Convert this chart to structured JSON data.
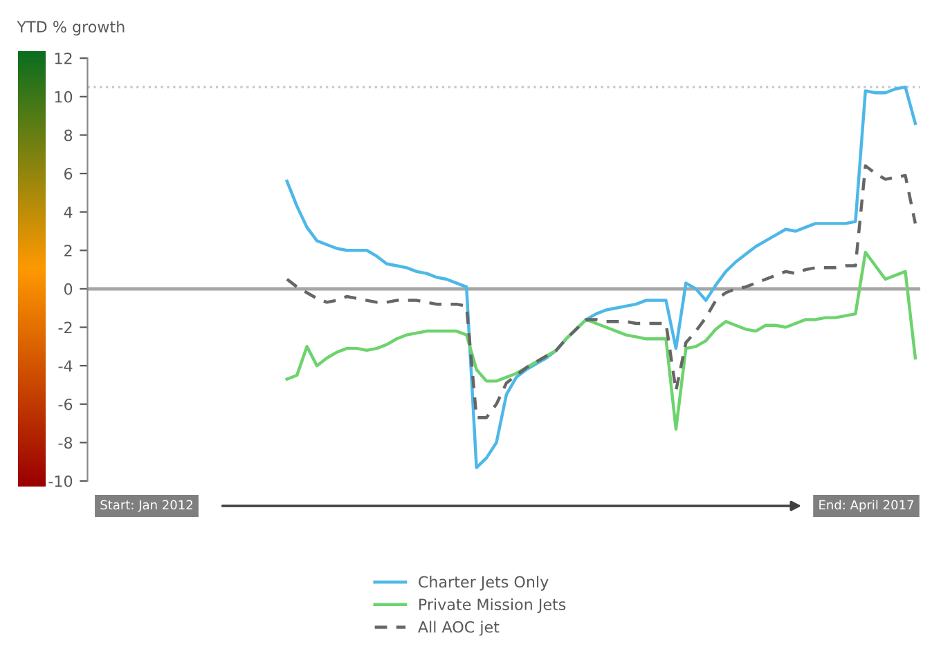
{
  "chart_data": {
    "type": "line",
    "ylabel": "YTD % growth",
    "categories": [
      null,
      null,
      null,
      null,
      null,
      null,
      null,
      null,
      null,
      null,
      null,
      null,
      null,
      null,
      null,
      null,
      null,
      null,
      null,
      null,
      null,
      null,
      null,
      null,
      null,
      null,
      null,
      null,
      null,
      null,
      null,
      null,
      null,
      null,
      null,
      null,
      null,
      null,
      null,
      null,
      null,
      null,
      null,
      null,
      null,
      null,
      null,
      null,
      null,
      null,
      null,
      null,
      null,
      null,
      null,
      null,
      null,
      null,
      null,
      null,
      null,
      null,
      null,
      null,
      null,
      null,
      null,
      null,
      null,
      null,
      null,
      null,
      null,
      null,
      null,
      null,
      null,
      null,
      null,
      null,
      null,
      null,
      null,
      null
    ],
    "series": [
      {
        "name": "Charter Jets Only",
        "color": "#4db8e8",
        "line_style": "solid",
        "values": [
          null,
          null,
          null,
          null,
          null,
          null,
          null,
          null,
          null,
          null,
          null,
          null,
          null,
          null,
          null,
          null,
          null,
          null,
          null,
          null,
          5.6,
          4.3,
          3.2,
          2.5,
          2.3,
          2.1,
          2.0,
          2.0,
          2.0,
          1.7,
          1.3,
          1.2,
          1.1,
          0.9,
          0.8,
          0.6,
          0.5,
          0.3,
          0.1,
          -9.3,
          -8.8,
          -8.0,
          -5.5,
          -4.6,
          -4.2,
          -3.9,
          -3.6,
          -3.2,
          -2.6,
          -2.1,
          -1.6,
          -1.3,
          -1.1,
          -1.0,
          -0.9,
          -0.8,
          -0.6,
          -0.6,
          -0.6,
          -3.1,
          0.3,
          0.0,
          -0.6,
          0.2,
          0.9,
          1.4,
          1.8,
          2.2,
          2.5,
          2.8,
          3.1,
          3.0,
          3.2,
          3.4,
          3.4,
          3.4,
          3.4,
          3.5,
          10.3,
          10.2,
          10.2,
          10.4,
          10.5,
          8.6
        ]
      },
      {
        "name": "Private Mission Jets",
        "color": "#6dd36d",
        "line_style": "solid",
        "values": [
          null,
          null,
          null,
          null,
          null,
          null,
          null,
          null,
          null,
          null,
          null,
          null,
          null,
          null,
          null,
          null,
          null,
          null,
          null,
          null,
          -4.7,
          -4.5,
          -3.0,
          -4.0,
          -3.6,
          -3.3,
          -3.1,
          -3.1,
          -3.2,
          -3.1,
          -2.9,
          -2.6,
          -2.4,
          -2.3,
          -2.2,
          -2.2,
          -2.2,
          -2.2,
          -2.4,
          -4.2,
          -4.8,
          -4.8,
          -4.6,
          -4.4,
          -4.1,
          -3.8,
          -3.5,
          -3.2,
          -2.6,
          -2.1,
          -1.6,
          -1.8,
          -2.0,
          -2.2,
          -2.4,
          -2.5,
          -2.6,
          -2.6,
          -2.6,
          -7.3,
          -3.1,
          -3.0,
          -2.7,
          -2.1,
          -1.7,
          -1.9,
          -2.1,
          -2.2,
          -1.9,
          -1.9,
          -2.0,
          -1.8,
          -1.6,
          -1.6,
          -1.5,
          -1.5,
          -1.4,
          -1.3,
          1.9,
          1.2,
          0.5,
          0.7,
          0.9,
          -3.6
        ]
      },
      {
        "name": "All AOC jet",
        "color": "#666666",
        "line_style": "dashed",
        "values": [
          null,
          null,
          null,
          null,
          null,
          null,
          null,
          null,
          null,
          null,
          null,
          null,
          null,
          null,
          null,
          null,
          null,
          null,
          null,
          null,
          0.5,
          0.1,
          -0.2,
          -0.5,
          -0.7,
          -0.6,
          -0.4,
          -0.5,
          -0.6,
          -0.7,
          -0.7,
          -0.6,
          -0.6,
          -0.6,
          -0.7,
          -0.8,
          -0.8,
          -0.8,
          -0.9,
          -6.7,
          -6.7,
          -6.0,
          -4.9,
          -4.5,
          -4.1,
          -3.8,
          -3.5,
          -3.2,
          -2.6,
          -2.1,
          -1.6,
          -1.6,
          -1.7,
          -1.7,
          -1.7,
          -1.8,
          -1.8,
          -1.8,
          -1.8,
          -5.3,
          -2.8,
          -2.2,
          -1.5,
          -0.6,
          -0.2,
          0.0,
          0.1,
          0.3,
          0.5,
          0.7,
          0.9,
          0.8,
          1.0,
          1.1,
          1.1,
          1.1,
          1.2,
          1.2,
          6.4,
          6.0,
          5.7,
          5.8,
          5.9,
          3.4
        ]
      }
    ],
    "ylim": [
      -10,
      12
    ],
    "yticks": [
      -10,
      -8,
      -6,
      -4,
      -2,
      0,
      2,
      4,
      6,
      8,
      10,
      12
    ],
    "ref_lines": [
      {
        "axis": "y",
        "value": 0,
        "color": "#a6a6a6",
        "line_style": "solid"
      },
      {
        "axis": "y",
        "value": 10.5,
        "color": "#c8c8c8",
        "line_style": "dotted"
      }
    ],
    "annotations": [
      "Start: Jan 2012",
      "End: April 2017"
    ],
    "legend": "bottom",
    "grid": false,
    "marker": "none",
    "tick_labels": "y"
  }
}
